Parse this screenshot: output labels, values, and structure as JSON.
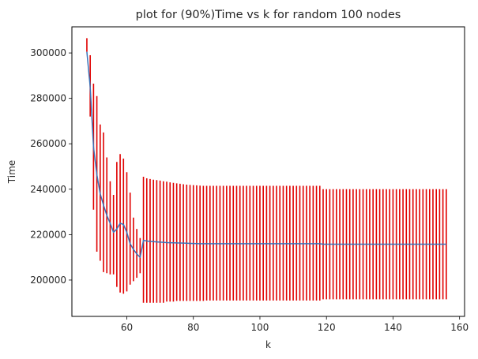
{
  "chart_data": {
    "type": "line",
    "title": "plot for (90%)Time vs k for random 100 nodes",
    "xlabel": "k",
    "ylabel": "Time",
    "xlim": [
      43.5,
      161.5
    ],
    "ylim": [
      184000,
      311500
    ],
    "xticks": [
      60,
      80,
      100,
      120,
      140,
      160
    ],
    "yticks": [
      200000,
      220000,
      240000,
      260000,
      280000,
      300000
    ],
    "grid": false,
    "legend": "none",
    "series_color": "#3b73b9",
    "errorbar_color": "#e00000",
    "series": [
      {
        "x": [
          48,
          49,
          50,
          51,
          52,
          53,
          54,
          55,
          56,
          57,
          58,
          59,
          60,
          61,
          62,
          63,
          64,
          65,
          66,
          67,
          68,
          69,
          70,
          71,
          72,
          73,
          74,
          75,
          76,
          77,
          78,
          79,
          80,
          81,
          82,
          83,
          84,
          85,
          86,
          87,
          88,
          89,
          90,
          91,
          92,
          93,
          94,
          95,
          96,
          97,
          98,
          99,
          100,
          101,
          102,
          103,
          104,
          105,
          106,
          107,
          108,
          109,
          110,
          111,
          112,
          113,
          114,
          115,
          116,
          117,
          118,
          119,
          120,
          121,
          122,
          123,
          124,
          125,
          126,
          127,
          128,
          129,
          130,
          131,
          132,
          133,
          134,
          135,
          136,
          137,
          138,
          139,
          140,
          141,
          142,
          143,
          144,
          145,
          146,
          147,
          148,
          149,
          150,
          151,
          152,
          153,
          154,
          155,
          156
        ],
        "y": [
          300500,
          285000,
          258500,
          246500,
          238000,
          233000,
          228500,
          225000,
          221000,
          222500,
          225000,
          224500,
          221000,
          216000,
          213500,
          211500,
          210000,
          217500,
          217200,
          217000,
          216900,
          216800,
          216700,
          216600,
          216500,
          216450,
          216400,
          216350,
          216300,
          216250,
          216200,
          216150,
          216100,
          216050,
          216000,
          216000,
          216000,
          216000,
          216000,
          216000,
          216000,
          216000,
          216000,
          216000,
          216000,
          216000,
          216000,
          216000,
          216000,
          216000,
          216000,
          216000,
          216000,
          216000,
          216000,
          216000,
          216000,
          216000,
          216000,
          216000,
          216000,
          216000,
          216000,
          216000,
          216000,
          216000,
          216000,
          216000,
          216000,
          216000,
          216000,
          215800,
          215800,
          215800,
          215800,
          215800,
          215800,
          215800,
          215800,
          215800,
          215800,
          215800,
          215800,
          215800,
          215800,
          215800,
          215800,
          215800,
          215800,
          215800,
          215800,
          215800,
          215800,
          215800,
          215800,
          215800,
          215800,
          215800,
          215800,
          215800,
          215800,
          215800,
          215800,
          215800,
          215800,
          215800,
          215800,
          215800,
          215800
        ],
        "ymin": [
          300500,
          272000,
          231000,
          212500,
          208500,
          203500,
          203000,
          202500,
          202500,
          197000,
          194500,
          194000,
          195000,
          198000,
          199500,
          201000,
          203000,
          190000,
          190000,
          190000,
          190000,
          190000,
          190000,
          190000,
          190500,
          190500,
          190500,
          190800,
          190800,
          190800,
          190800,
          190800,
          190800,
          190800,
          190800,
          190800,
          191000,
          191000,
          191000,
          191000,
          191000,
          191000,
          191000,
          191000,
          191000,
          191000,
          191000,
          191000,
          191000,
          191000,
          191000,
          191000,
          191000,
          191000,
          191000,
          191000,
          191000,
          191000,
          191000,
          191000,
          191000,
          191000,
          191000,
          191000,
          191000,
          191000,
          191000,
          191000,
          191000,
          191000,
          191000,
          191500,
          191500,
          191500,
          191500,
          191500,
          191500,
          191500,
          191500,
          191500,
          191500,
          191500,
          191500,
          191500,
          191500,
          191500,
          191500,
          191500,
          191500,
          191500,
          191500,
          191500,
          191500,
          191500,
          191500,
          191500,
          191500,
          191500,
          191500,
          191500,
          191500,
          191500,
          191500,
          191500,
          191500,
          191500,
          191500,
          191500,
          191500
        ],
        "ymax": [
          306500,
          299000,
          286500,
          281000,
          268500,
          265000,
          254000,
          243500,
          237500,
          252000,
          255500,
          253500,
          247500,
          238500,
          227500,
          222500,
          218500,
          245500,
          244800,
          244500,
          244200,
          244000,
          243800,
          243500,
          243300,
          243000,
          242800,
          242600,
          242400,
          242200,
          242000,
          241900,
          241800,
          241700,
          241600,
          241500,
          241500,
          241500,
          241500,
          241500,
          241500,
          241500,
          241500,
          241500,
          241500,
          241500,
          241500,
          241500,
          241500,
          241500,
          241500,
          241500,
          241500,
          241500,
          241500,
          241500,
          241500,
          241500,
          241500,
          241500,
          241500,
          241500,
          241500,
          241500,
          241500,
          241500,
          241500,
          241500,
          241500,
          241500,
          241500,
          240000,
          240000,
          240000,
          240000,
          240000,
          240000,
          240000,
          240000,
          240000,
          240000,
          240000,
          240000,
          240000,
          240000,
          240000,
          240000,
          240000,
          240000,
          240000,
          240000,
          240000,
          240000,
          240000,
          240000,
          240000,
          240000,
          240000,
          240000,
          240000,
          240000,
          240000,
          240000,
          240000,
          240000,
          240000,
          240000,
          240000,
          240000
        ]
      }
    ]
  }
}
